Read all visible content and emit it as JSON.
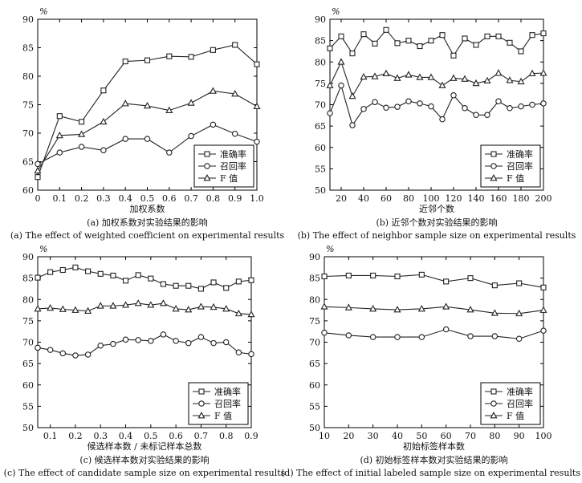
{
  "chart_data": [
    {
      "type": "line",
      "unit": "%",
      "xlabel": "加权系数",
      "caption_cn": "(a) 加权系数对实验结果的影响",
      "caption_en": "(a) The effect of weighted coefficient on experimental results",
      "xlim": [
        0,
        1.0
      ],
      "ylim": [
        60,
        90
      ],
      "xticks": [
        "0",
        "0.1",
        "0.2",
        "0.3",
        "0.4",
        "0.5",
        "0.6",
        "0.7",
        "0.8",
        "0.9",
        "1.0"
      ],
      "yticks": [
        "60",
        "65",
        "70",
        "75",
        "80",
        "85",
        "90"
      ],
      "legend_position": "bottom-right",
      "x": [
        0,
        0.1,
        0.2,
        0.3,
        0.4,
        0.5,
        0.6,
        0.7,
        0.8,
        0.9,
        1.0
      ],
      "series": [
        {
          "name": "准确率",
          "marker": "square",
          "values": [
            62.3,
            73.0,
            72.0,
            77.5,
            82.6,
            82.8,
            83.5,
            83.4,
            84.6,
            85.5,
            82.1
          ]
        },
        {
          "name": "召回率",
          "marker": "circle",
          "values": [
            64.6,
            66.6,
            67.6,
            67.0,
            69.0,
            69.0,
            66.6,
            69.5,
            71.5,
            69.9,
            68.5
          ]
        },
        {
          "name": "F 值",
          "marker": "triangle",
          "values": [
            63.4,
            69.6,
            69.8,
            72.0,
            75.2,
            74.8,
            74.0,
            75.3,
            77.4,
            76.9,
            74.7
          ]
        }
      ]
    },
    {
      "type": "line",
      "unit": "%",
      "xlabel": "近邻个数",
      "caption_cn": "(b) 近邻个数对实验结果的影响",
      "caption_en": "(b) The effect of neighbor sample size on experimental results",
      "xlim": [
        10,
        200
      ],
      "ylim": [
        50,
        90
      ],
      "xticks": [
        "20",
        "40",
        "60",
        "80",
        "100",
        "120",
        "140",
        "160",
        "180",
        "200"
      ],
      "yticks": [
        "50",
        "55",
        "60",
        "65",
        "70",
        "75",
        "80",
        "85",
        "90"
      ],
      "legend_position": "bottom-right",
      "x": [
        10,
        20,
        30,
        40,
        50,
        60,
        70,
        80,
        90,
        100,
        110,
        120,
        130,
        140,
        150,
        160,
        170,
        180,
        190,
        200
      ],
      "series": [
        {
          "name": "准确率",
          "marker": "square",
          "values": [
            83.2,
            86.0,
            82.0,
            86.5,
            84.3,
            87.5,
            84.4,
            85.0,
            83.7,
            85.0,
            86.3,
            81.5,
            85.5,
            84.0,
            86.0,
            86.0,
            84.5,
            82.5,
            86.3,
            86.7
          ]
        },
        {
          "name": "召回率",
          "marker": "circle",
          "values": [
            68.0,
            74.5,
            65.2,
            69.0,
            70.6,
            69.3,
            69.5,
            70.8,
            70.3,
            69.6,
            66.6,
            72.2,
            69.2,
            67.6,
            67.6,
            70.8,
            69.2,
            69.6,
            70.0,
            70.3
          ]
        },
        {
          "name": "F 值",
          "marker": "triangle",
          "values": [
            74.5,
            80.0,
            72.0,
            76.5,
            76.6,
            77.3,
            76.2,
            77.0,
            76.4,
            76.4,
            74.5,
            76.2,
            76.0,
            75.0,
            75.6,
            77.4,
            75.7,
            75.4,
            77.3,
            77.4
          ]
        }
      ]
    },
    {
      "type": "line",
      "unit": "%",
      "xlabel": "候选样本数 / 未标记样本总数",
      "caption_cn": "(c) 候选样本数对实验结果的影响",
      "caption_en": "(c) The effect of candidate sample size on experimental results",
      "xlim": [
        0.05,
        0.9
      ],
      "ylim": [
        50,
        90
      ],
      "xticks": [
        "0.1",
        "0.2",
        "0.3",
        "0.4",
        "0.5",
        "0.6",
        "0.7",
        "0.8",
        "0.9"
      ],
      "yticks": [
        "50",
        "55",
        "60",
        "65",
        "70",
        "75",
        "80",
        "85",
        "90"
      ],
      "legend_position": "bottom-right",
      "x": [
        0.05,
        0.1,
        0.15,
        0.2,
        0.25,
        0.3,
        0.35,
        0.4,
        0.45,
        0.5,
        0.55,
        0.6,
        0.65,
        0.7,
        0.75,
        0.8,
        0.85,
        0.9
      ],
      "series": [
        {
          "name": "准确率",
          "marker": "square",
          "values": [
            85.1,
            86.4,
            86.9,
            87.5,
            86.6,
            86.0,
            85.6,
            84.4,
            85.7,
            84.9,
            83.6,
            83.2,
            83.2,
            82.5,
            84.0,
            82.7,
            84.2,
            84.5
          ]
        },
        {
          "name": "召回率",
          "marker": "circle",
          "values": [
            68.7,
            68.2,
            67.4,
            66.9,
            67.1,
            69.2,
            69.6,
            70.6,
            70.5,
            70.3,
            71.8,
            70.3,
            69.8,
            71.2,
            69.8,
            70.0,
            67.6,
            67.2
          ]
        },
        {
          "name": "F 值",
          "marker": "triangle",
          "values": [
            77.8,
            78.0,
            77.7,
            77.5,
            77.3,
            78.5,
            78.5,
            78.7,
            79.1,
            78.7,
            79.1,
            77.8,
            77.6,
            78.3,
            78.2,
            77.8,
            76.7,
            76.5
          ]
        }
      ]
    },
    {
      "type": "line",
      "unit": "%",
      "xlabel": "初始标签样本数",
      "caption_cn": "(d) 初始标签样本数对实验结果的影响",
      "caption_en": "(d) The effect of initial labeled sample size on experimental results",
      "xlim": [
        10,
        100
      ],
      "ylim": [
        50,
        90
      ],
      "xticks": [
        "10",
        "20",
        "30",
        "40",
        "50",
        "60",
        "70",
        "80",
        "90",
        "100"
      ],
      "yticks": [
        "50",
        "55",
        "60",
        "65",
        "70",
        "75",
        "80",
        "85",
        "90"
      ],
      "legend_position": "bottom-right",
      "x": [
        10,
        20,
        30,
        40,
        50,
        60,
        70,
        80,
        90,
        100
      ],
      "series": [
        {
          "name": "准确率",
          "marker": "square",
          "values": [
            85.4,
            85.6,
            85.6,
            85.4,
            85.8,
            84.2,
            85.0,
            83.3,
            83.8,
            82.8
          ]
        },
        {
          "name": "召回率",
          "marker": "circle",
          "values": [
            72.2,
            71.6,
            71.2,
            71.2,
            71.2,
            73.0,
            71.4,
            71.4,
            70.8,
            72.7
          ]
        },
        {
          "name": "F 值",
          "marker": "triangle",
          "values": [
            78.3,
            78.1,
            77.8,
            77.6,
            77.8,
            78.3,
            77.6,
            76.8,
            76.7,
            77.5
          ]
        }
      ]
    }
  ]
}
